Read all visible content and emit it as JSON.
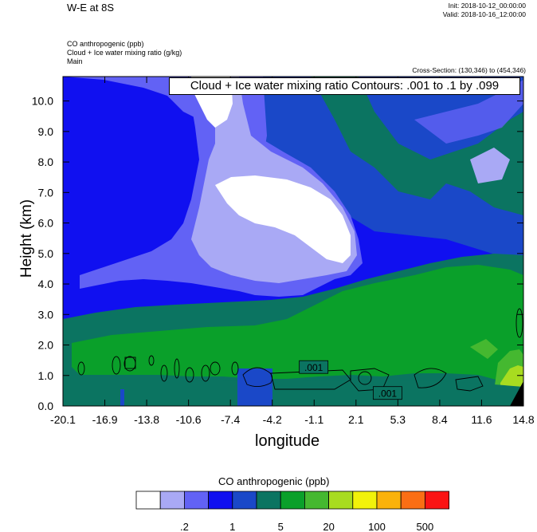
{
  "header": {
    "title": "W-E at 8S",
    "init": "Init: 2018-10-12_00:00:00",
    "valid": "Valid: 2018-10-16_12:00:00",
    "var_lines": [
      "CO anthropogenic   (ppb)",
      "Cloud + Ice water mixing ratio   (g/kg)",
      "Main"
    ],
    "cross_section": "Cross-Section: (130,346) to (454,346)"
  },
  "chart_data": {
    "type": "heatmap",
    "title": "W-E at 8S",
    "xlabel": "longitude",
    "ylabel": "Height (km)",
    "x_ticks": [
      "-20.1",
      "-16.9",
      "-13.8",
      "-10.6",
      "-7.4",
      "-4.2",
      "-1.1",
      "2.1",
      "5.3",
      "8.4",
      "11.6",
      "14.8"
    ],
    "y_ticks": [
      "0.0",
      "1.0",
      "2.0",
      "3.0",
      "4.0",
      "5.0",
      "6.0",
      "7.0",
      "8.0",
      "9.0",
      "10.0"
    ],
    "xlim": [
      -20.1,
      14.8
    ],
    "ylim": [
      0,
      10.8
    ],
    "contour_info": "Cloud + Ice water mixing ratio Contours: .001 to .1 by .099",
    "contour_labels": [
      {
        "text": ".001",
        "x": -1.1,
        "y": 1.25
      },
      {
        "text": ".001",
        "x": 4.5,
        "y": 0.4
      }
    ],
    "colorbar": {
      "title": "CO anthropogenic  (ppb)",
      "colors": [
        "#ffffff",
        "#a9a9f5",
        "#6262f5",
        "#1010f0",
        "#1a48c8",
        "#0b7461",
        "#0aa02a",
        "#45b830",
        "#a8dc20",
        "#f2f20a",
        "#fab20a",
        "#fa6e14",
        "#fa1414"
      ],
      "labels": [
        ".2",
        "1",
        "5",
        "20",
        "100",
        "500"
      ]
    }
  }
}
